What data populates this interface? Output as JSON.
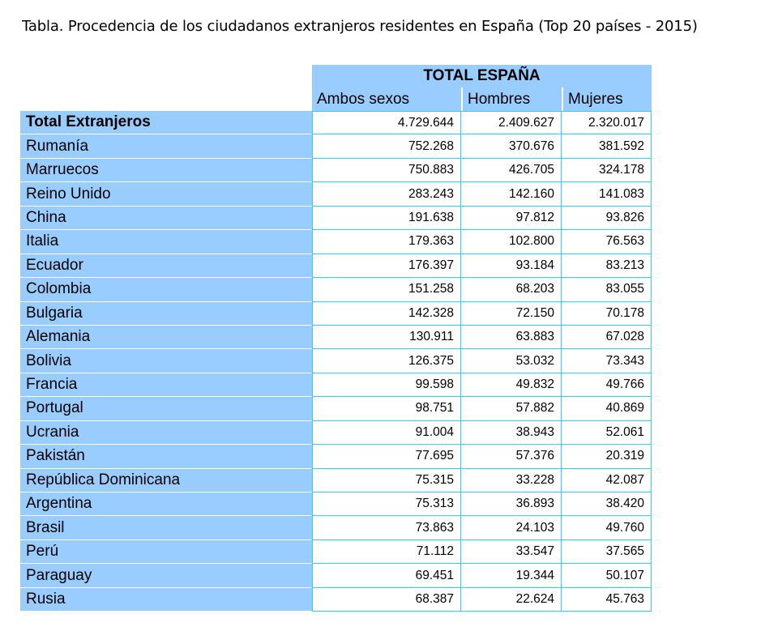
{
  "caption": "Tabla. Procedencia de los ciudadanos extranjeros residentes en España (Top 20 países - 2015)",
  "table": {
    "group_header": "TOTAL ESPAÑA",
    "columns": [
      "Ambos sexos",
      "Hombres",
      "Mujeres"
    ],
    "rows": [
      {
        "name": "Total Extranjeros",
        "ambos": "4.729.644",
        "hombres": "2.409.627",
        "mujeres": "2.320.017",
        "bold": true
      },
      {
        "name": "Rumanía",
        "ambos": "752.268",
        "hombres": "370.676",
        "mujeres": "381.592"
      },
      {
        "name": "Marruecos",
        "ambos": "750.883",
        "hombres": "426.705",
        "mujeres": "324.178"
      },
      {
        "name": "Reino Unido",
        "ambos": "283.243",
        "hombres": "142.160",
        "mujeres": "141.083"
      },
      {
        "name": "China",
        "ambos": "191.638",
        "hombres": "97.812",
        "mujeres": "93.826"
      },
      {
        "name": "Italia",
        "ambos": "179.363",
        "hombres": "102.800",
        "mujeres": "76.563"
      },
      {
        "name": "Ecuador",
        "ambos": "176.397",
        "hombres": "93.184",
        "mujeres": "83.213"
      },
      {
        "name": "Colombia",
        "ambos": "151.258",
        "hombres": "68.203",
        "mujeres": "83.055"
      },
      {
        "name": "Bulgaria",
        "ambos": "142.328",
        "hombres": "72.150",
        "mujeres": "70.178"
      },
      {
        "name": "Alemania",
        "ambos": "130.911",
        "hombres": "63.883",
        "mujeres": "67.028"
      },
      {
        "name": "Bolivia",
        "ambos": "126.375",
        "hombres": "53.032",
        "mujeres": "73.343"
      },
      {
        "name": "Francia",
        "ambos": "99.598",
        "hombres": "49.832",
        "mujeres": "49.766"
      },
      {
        "name": "Portugal",
        "ambos": "98.751",
        "hombres": "57.882",
        "mujeres": "40.869"
      },
      {
        "name": "Ucrania",
        "ambos": "91.004",
        "hombres": "38.943",
        "mujeres": "52.061"
      },
      {
        "name": "Pakistán",
        "ambos": "77.695",
        "hombres": "57.376",
        "mujeres": "20.319"
      },
      {
        "name": "República Dominicana",
        "ambos": "75.315",
        "hombres": "33.228",
        "mujeres": "42.087"
      },
      {
        "name": "Argentina",
        "ambos": "75.313",
        "hombres": "36.893",
        "mujeres": "38.420"
      },
      {
        "name": "Brasil",
        "ambos": "73.863",
        "hombres": "24.103",
        "mujeres": "49.760"
      },
      {
        "name": "Perú",
        "ambos": "71.112",
        "hombres": "33.547",
        "mujeres": "37.565"
      },
      {
        "name": "Paraguay",
        "ambos": "69.451",
        "hombres": "19.344",
        "mujeres": "50.107"
      },
      {
        "name": "Rusia",
        "ambos": "68.387",
        "hombres": "22.624",
        "mujeres": "45.763"
      }
    ]
  }
}
